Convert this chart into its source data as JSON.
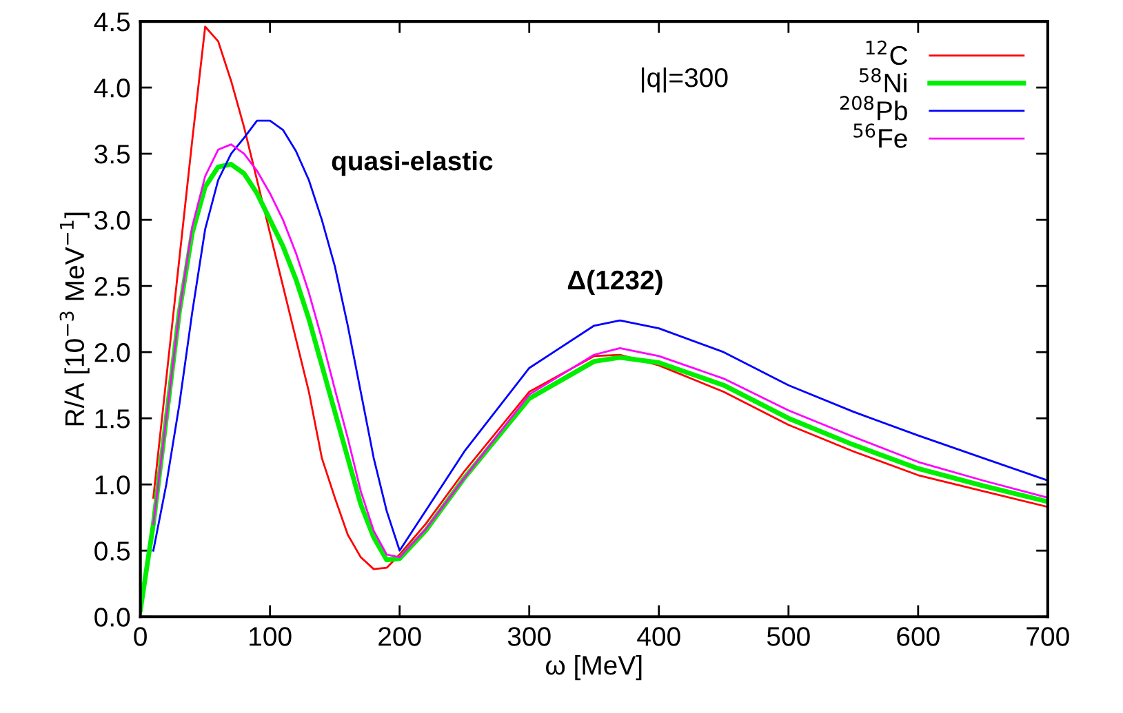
{
  "chart_data": {
    "type": "line",
    "x": [
      0,
      10,
      20,
      30,
      40,
      50,
      60,
      70,
      80,
      90,
      100,
      110,
      120,
      130,
      140,
      150,
      160,
      170,
      180,
      190,
      200,
      220,
      250,
      300,
      350,
      370,
      400,
      450,
      500,
      550,
      600,
      650,
      700
    ],
    "series": [
      {
        "name": "$^{12}$C",
        "color": "#ff0000",
        "values": [
          null,
          0.9,
          1.8,
          2.7,
          3.6,
          4.46,
          4.35,
          4.05,
          3.7,
          3.3,
          2.9,
          2.5,
          2.1,
          1.7,
          1.2,
          0.9,
          0.62,
          0.45,
          0.36,
          0.37,
          0.47,
          0.7,
          1.1,
          1.7,
          1.97,
          1.98,
          1.9,
          1.7,
          1.45,
          1.25,
          1.07,
          0.95,
          0.83
        ]
      },
      {
        "name": "$^{58}$Ni",
        "color": "#00ee00",
        "values": [
          0.05,
          0.7,
          1.5,
          2.3,
          2.9,
          3.25,
          3.4,
          3.42,
          3.35,
          3.2,
          3.0,
          2.8,
          2.55,
          2.25,
          1.9,
          1.55,
          1.2,
          0.85,
          0.6,
          0.43,
          0.44,
          0.65,
          1.05,
          1.65,
          1.93,
          1.96,
          1.92,
          1.75,
          1.5,
          1.3,
          1.12,
          0.99,
          0.87
        ]
      },
      {
        "name": "$^{208}$Pb",
        "color": "#0000ff",
        "values": [
          null,
          0.5,
          1.0,
          1.6,
          2.3,
          2.93,
          3.3,
          3.5,
          3.62,
          3.75,
          3.75,
          3.68,
          3.52,
          3.3,
          3.0,
          2.65,
          2.2,
          1.7,
          1.2,
          0.8,
          0.5,
          0.8,
          1.25,
          1.88,
          2.2,
          2.24,
          2.18,
          2.0,
          1.75,
          1.55,
          1.37,
          1.2,
          1.03
        ]
      },
      {
        "name": "$^{56}$Fe",
        "color": "#ff00ff",
        "values": [
          null,
          0.7,
          1.5,
          2.3,
          2.95,
          3.33,
          3.53,
          3.57,
          3.5,
          3.37,
          3.2,
          3.0,
          2.75,
          2.45,
          2.1,
          1.72,
          1.35,
          0.95,
          0.65,
          0.47,
          0.45,
          0.66,
          1.05,
          1.68,
          1.98,
          2.03,
          1.97,
          1.8,
          1.56,
          1.36,
          1.17,
          1.03,
          0.9
        ]
      }
    ],
    "xlabel": "ω [MeV]",
    "ylabel": "R/A [10$^{−3}$ MeV$^{−1}$]",
    "xlim": [
      0,
      700
    ],
    "xticks": [
      0,
      100,
      200,
      300,
      400,
      500,
      600,
      700
    ],
    "ylim": [
      0,
      4.5
    ],
    "yticks": [
      {
        "value": 0,
        "label": "0.0"
      },
      {
        "value": 0.5,
        "label": "0.5"
      },
      {
        "value": 1,
        "label": "1.0"
      },
      {
        "value": 1.5,
        "label": "1.5"
      },
      {
        "value": 2,
        "label": "2.0"
      },
      {
        "value": 2.5,
        "label": "2.5"
      },
      {
        "value": 3,
        "label": "3.0"
      },
      {
        "value": 3.5,
        "label": "3.5"
      },
      {
        "value": 4,
        "label": "4.0"
      },
      {
        "value": 4.5,
        "label": "4.5"
      }
    ],
    "annotations": [
      "|q|=300",
      "quasi-elastic",
      "Δ(1232)"
    ],
    "legend": "top right",
    "grid": false,
    "marker": "none",
    "line_style": "solid"
  }
}
